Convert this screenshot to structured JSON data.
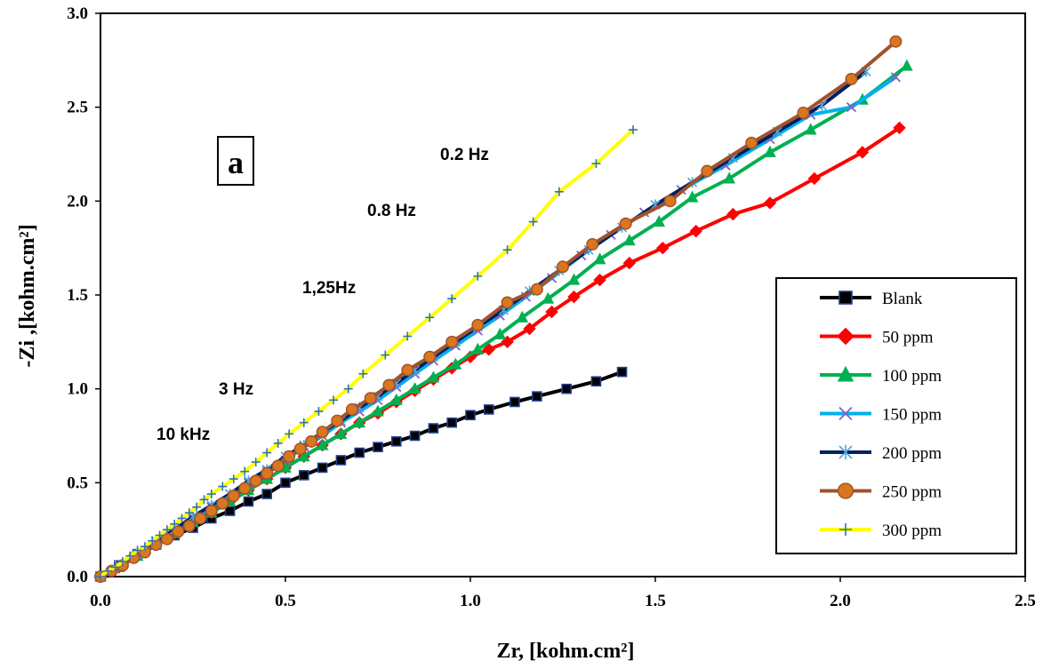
{
  "chart_data": {
    "type": "scatter",
    "xlabel": "Zr, [kohm.cm²]",
    "ylabel": "-Zi ,[kohm.cm²]",
    "xlim": [
      0,
      2.5
    ],
    "ylim": [
      0,
      3.0
    ],
    "xticks": [
      "0.0",
      "0.5",
      "1.0",
      "1.5",
      "2.0",
      "2.5"
    ],
    "yticks": [
      "0.0",
      "0.5",
      "1.0",
      "1.5",
      "2.0",
      "2.5",
      "3.0"
    ],
    "panel_label": "a",
    "annotations": [
      "0.2 Hz",
      "0.8 Hz",
      "1,25Hz",
      "3 Hz",
      "10 kHz"
    ],
    "legend_position": "right",
    "series": [
      {
        "name": "Blank",
        "color": "#000000",
        "marker": "square",
        "marker_fill": "#1f3f8f",
        "points": [
          [
            0.0,
            0.0
          ],
          [
            0.05,
            0.06
          ],
          [
            0.1,
            0.12
          ],
          [
            0.15,
            0.17
          ],
          [
            0.2,
            0.22
          ],
          [
            0.25,
            0.26
          ],
          [
            0.3,
            0.31
          ],
          [
            0.35,
            0.35
          ],
          [
            0.4,
            0.4
          ],
          [
            0.45,
            0.44
          ],
          [
            0.5,
            0.5
          ],
          [
            0.55,
            0.54
          ],
          [
            0.6,
            0.58
          ],
          [
            0.65,
            0.62
          ],
          [
            0.7,
            0.66
          ],
          [
            0.75,
            0.69
          ],
          [
            0.8,
            0.72
          ],
          [
            0.85,
            0.75
          ],
          [
            0.9,
            0.79
          ],
          [
            0.95,
            0.82
          ],
          [
            1.0,
            0.86
          ],
          [
            1.05,
            0.89
          ],
          [
            1.12,
            0.93
          ],
          [
            1.18,
            0.96
          ],
          [
            1.26,
            1.0
          ],
          [
            1.34,
            1.04
          ],
          [
            1.41,
            1.09
          ]
        ]
      },
      {
        "name": "50 ppm",
        "color": "#ff0000",
        "marker": "diamond",
        "marker_fill": "#ff0000",
        "points": [
          [
            0.0,
            0.0
          ],
          [
            0.05,
            0.05
          ],
          [
            0.1,
            0.11
          ],
          [
            0.15,
            0.17
          ],
          [
            0.2,
            0.23
          ],
          [
            0.25,
            0.29
          ],
          [
            0.3,
            0.34
          ],
          [
            0.35,
            0.4
          ],
          [
            0.4,
            0.46
          ],
          [
            0.45,
            0.52
          ],
          [
            0.5,
            0.58
          ],
          [
            0.55,
            0.64
          ],
          [
            0.6,
            0.7
          ],
          [
            0.65,
            0.76
          ],
          [
            0.7,
            0.82
          ],
          [
            0.75,
            0.87
          ],
          [
            0.8,
            0.93
          ],
          [
            0.85,
            0.99
          ],
          [
            0.9,
            1.05
          ],
          [
            0.95,
            1.11
          ],
          [
            1.0,
            1.17
          ],
          [
            1.05,
            1.21
          ],
          [
            1.1,
            1.25
          ],
          [
            1.16,
            1.32
          ],
          [
            1.22,
            1.41
          ],
          [
            1.28,
            1.49
          ],
          [
            1.35,
            1.58
          ],
          [
            1.43,
            1.67
          ],
          [
            1.52,
            1.75
          ],
          [
            1.61,
            1.84
          ],
          [
            1.71,
            1.93
          ],
          [
            1.81,
            1.99
          ],
          [
            1.93,
            2.12
          ],
          [
            2.06,
            2.26
          ],
          [
            2.16,
            2.39
          ]
        ]
      },
      {
        "name": "100 ppm",
        "color": "#00b050",
        "marker": "triangle",
        "marker_fill": "#00b050",
        "points": [
          [
            0.0,
            0.0
          ],
          [
            0.05,
            0.05
          ],
          [
            0.1,
            0.11
          ],
          [
            0.15,
            0.17
          ],
          [
            0.2,
            0.23
          ],
          [
            0.25,
            0.29
          ],
          [
            0.3,
            0.34
          ],
          [
            0.35,
            0.4
          ],
          [
            0.4,
            0.46
          ],
          [
            0.45,
            0.52
          ],
          [
            0.5,
            0.58
          ],
          [
            0.55,
            0.64
          ],
          [
            0.6,
            0.7
          ],
          [
            0.65,
            0.76
          ],
          [
            0.7,
            0.82
          ],
          [
            0.75,
            0.88
          ],
          [
            0.8,
            0.94
          ],
          [
            0.85,
            1.0
          ],
          [
            0.9,
            1.06
          ],
          [
            0.96,
            1.13
          ],
          [
            1.02,
            1.21
          ],
          [
            1.08,
            1.29
          ],
          [
            1.14,
            1.38
          ],
          [
            1.21,
            1.48
          ],
          [
            1.28,
            1.58
          ],
          [
            1.35,
            1.69
          ],
          [
            1.43,
            1.79
          ],
          [
            1.51,
            1.89
          ],
          [
            1.6,
            2.02
          ],
          [
            1.7,
            2.12
          ],
          [
            1.81,
            2.26
          ],
          [
            1.92,
            2.38
          ],
          [
            2.06,
            2.54
          ],
          [
            2.18,
            2.72
          ]
        ]
      },
      {
        "name": "150 ppm",
        "color": "#00b0f0",
        "marker": "x",
        "marker_fill": "#7f63c8",
        "points": [
          [
            0.0,
            0.0
          ],
          [
            0.05,
            0.06
          ],
          [
            0.1,
            0.12
          ],
          [
            0.15,
            0.19
          ],
          [
            0.2,
            0.25
          ],
          [
            0.25,
            0.31
          ],
          [
            0.3,
            0.37
          ],
          [
            0.35,
            0.44
          ],
          [
            0.4,
            0.5
          ],
          [
            0.45,
            0.56
          ],
          [
            0.5,
            0.62
          ],
          [
            0.55,
            0.69
          ],
          [
            0.6,
            0.75
          ],
          [
            0.65,
            0.82
          ],
          [
            0.7,
            0.88
          ],
          [
            0.75,
            0.94
          ],
          [
            0.8,
            1.01
          ],
          [
            0.85,
            1.08
          ],
          [
            0.9,
            1.15
          ],
          [
            0.96,
            1.23
          ],
          [
            1.02,
            1.31
          ],
          [
            1.08,
            1.39
          ],
          [
            1.15,
            1.49
          ],
          [
            1.22,
            1.59
          ],
          [
            1.3,
            1.71
          ],
          [
            1.38,
            1.82
          ],
          [
            1.47,
            1.94
          ],
          [
            1.57,
            2.06
          ],
          [
            1.69,
            2.19
          ],
          [
            1.81,
            2.33
          ],
          [
            1.92,
            2.46
          ],
          [
            2.03,
            2.5
          ],
          [
            2.15,
            2.66
          ]
        ]
      },
      {
        "name": "200 ppm",
        "color": "#002060",
        "marker": "asterisk",
        "marker_fill": "#4fa3d8",
        "points": [
          [
            0.0,
            0.0
          ],
          [
            0.05,
            0.06
          ],
          [
            0.1,
            0.12
          ],
          [
            0.15,
            0.19
          ],
          [
            0.2,
            0.25
          ],
          [
            0.25,
            0.32
          ],
          [
            0.3,
            0.38
          ],
          [
            0.35,
            0.44
          ],
          [
            0.4,
            0.51
          ],
          [
            0.45,
            0.57
          ],
          [
            0.5,
            0.64
          ],
          [
            0.55,
            0.7
          ],
          [
            0.6,
            0.77
          ],
          [
            0.65,
            0.83
          ],
          [
            0.7,
            0.9
          ],
          [
            0.75,
            0.96
          ],
          [
            0.8,
            1.03
          ],
          [
            0.85,
            1.1
          ],
          [
            0.9,
            1.17
          ],
          [
            0.96,
            1.25
          ],
          [
            1.02,
            1.33
          ],
          [
            1.09,
            1.42
          ],
          [
            1.16,
            1.52
          ],
          [
            1.24,
            1.63
          ],
          [
            1.32,
            1.74
          ],
          [
            1.41,
            1.86
          ],
          [
            1.5,
            1.98
          ],
          [
            1.6,
            2.1
          ],
          [
            1.71,
            2.23
          ],
          [
            1.83,
            2.37
          ],
          [
            1.95,
            2.51
          ],
          [
            2.07,
            2.69
          ]
        ]
      },
      {
        "name": "250 ppm",
        "color": "#a0522d",
        "marker": "circle",
        "marker_fill": "#d9771f",
        "points": [
          [
            0.0,
            0.0
          ],
          [
            0.03,
            0.03
          ],
          [
            0.06,
            0.06
          ],
          [
            0.09,
            0.1
          ],
          [
            0.12,
            0.13
          ],
          [
            0.15,
            0.17
          ],
          [
            0.18,
            0.2
          ],
          [
            0.21,
            0.24
          ],
          [
            0.24,
            0.27
          ],
          [
            0.27,
            0.31
          ],
          [
            0.3,
            0.35
          ],
          [
            0.33,
            0.39
          ],
          [
            0.36,
            0.43
          ],
          [
            0.39,
            0.47
          ],
          [
            0.42,
            0.51
          ],
          [
            0.45,
            0.55
          ],
          [
            0.48,
            0.59
          ],
          [
            0.51,
            0.64
          ],
          [
            0.54,
            0.68
          ],
          [
            0.57,
            0.72
          ],
          [
            0.6,
            0.77
          ],
          [
            0.64,
            0.83
          ],
          [
            0.68,
            0.89
          ],
          [
            0.73,
            0.95
          ],
          [
            0.78,
            1.02
          ],
          [
            0.83,
            1.1
          ],
          [
            0.89,
            1.17
          ],
          [
            0.95,
            1.25
          ],
          [
            1.02,
            1.34
          ],
          [
            1.1,
            1.46
          ],
          [
            1.18,
            1.53
          ],
          [
            1.25,
            1.65
          ],
          [
            1.33,
            1.77
          ],
          [
            1.42,
            1.88
          ],
          [
            1.54,
            2.0
          ],
          [
            1.64,
            2.16
          ],
          [
            1.76,
            2.31
          ],
          [
            1.9,
            2.47
          ],
          [
            2.03,
            2.65
          ],
          [
            2.15,
            2.85
          ]
        ]
      },
      {
        "name": "300 ppm",
        "color": "#ffff00",
        "marker": "plus",
        "marker_fill": "#2e75b6",
        "points": [
          [
            0.0,
            0.0
          ],
          [
            0.02,
            0.03
          ],
          [
            0.04,
            0.05
          ],
          [
            0.06,
            0.08
          ],
          [
            0.08,
            0.11
          ],
          [
            0.1,
            0.14
          ],
          [
            0.12,
            0.16
          ],
          [
            0.14,
            0.19
          ],
          [
            0.16,
            0.22
          ],
          [
            0.18,
            0.25
          ],
          [
            0.2,
            0.28
          ],
          [
            0.22,
            0.31
          ],
          [
            0.24,
            0.34
          ],
          [
            0.26,
            0.37
          ],
          [
            0.28,
            0.41
          ],
          [
            0.3,
            0.44
          ],
          [
            0.33,
            0.48
          ],
          [
            0.36,
            0.52
          ],
          [
            0.39,
            0.56
          ],
          [
            0.42,
            0.61
          ],
          [
            0.45,
            0.66
          ],
          [
            0.48,
            0.71
          ],
          [
            0.51,
            0.76
          ],
          [
            0.55,
            0.82
          ],
          [
            0.59,
            0.88
          ],
          [
            0.63,
            0.94
          ],
          [
            0.67,
            1.0
          ],
          [
            0.71,
            1.08
          ],
          [
            0.77,
            1.18
          ],
          [
            0.83,
            1.28
          ],
          [
            0.89,
            1.38
          ],
          [
            0.95,
            1.48
          ],
          [
            1.02,
            1.6
          ],
          [
            1.1,
            1.74
          ],
          [
            1.17,
            1.89
          ],
          [
            1.24,
            2.05
          ],
          [
            1.34,
            2.2
          ],
          [
            1.44,
            2.38
          ]
        ]
      }
    ]
  }
}
